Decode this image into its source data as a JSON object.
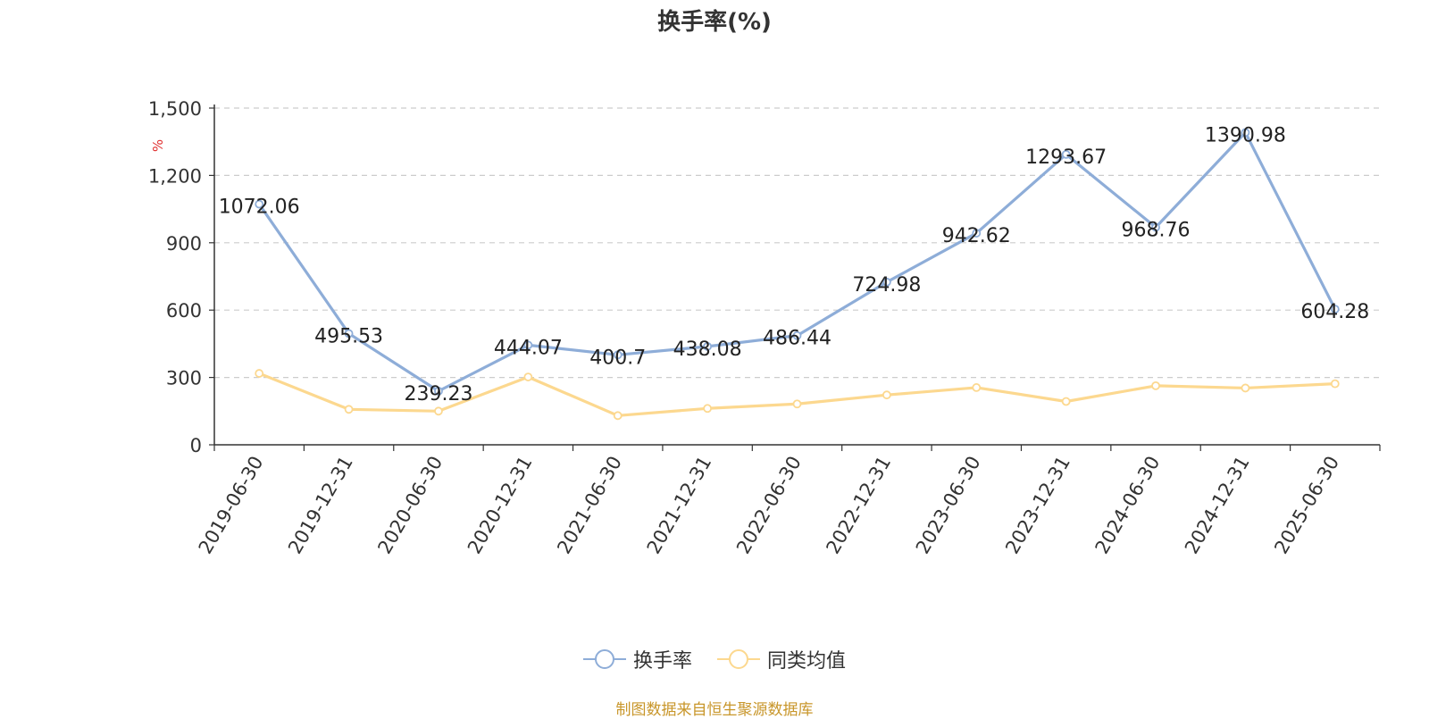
{
  "chart_data": {
    "type": "line",
    "title": "换手率(%)",
    "ylabel": "%",
    "ylim": [
      0,
      1500
    ],
    "yticks": [
      "0",
      "300",
      "600",
      "900",
      "1,200",
      "1,500"
    ],
    "categories": [
      "2019-06-30",
      "2019-12-31",
      "2020-06-30",
      "2020-12-31",
      "2021-06-30",
      "2021-12-31",
      "2022-06-30",
      "2022-12-31",
      "2023-06-30",
      "2023-12-31",
      "2024-06-30",
      "2024-12-31",
      "2025-06-30"
    ],
    "series": [
      {
        "name": "换手率",
        "color": "#8eadd8",
        "values": [
          1072.06,
          495.53,
          239.23,
          444.07,
          400.7,
          438.08,
          486.44,
          724.98,
          942.62,
          1293.67,
          968.76,
          1390.98,
          604.28
        ],
        "labels": [
          "1072.06",
          "495.53",
          "239.23",
          "444.07",
          "400.7",
          "438.08",
          "486.44",
          "724.98",
          "942.62",
          "1293.67",
          "968.76",
          "1390.98",
          "604.28"
        ]
      },
      {
        "name": "同类均值",
        "color": "#fcd88f",
        "values": [
          318,
          158,
          150,
          302,
          130,
          162,
          182,
          222,
          255,
          193,
          263,
          253,
          272
        ]
      }
    ],
    "grid": true,
    "legend_position": "bottom"
  },
  "source": "制图数据来自恒生聚源数据库"
}
